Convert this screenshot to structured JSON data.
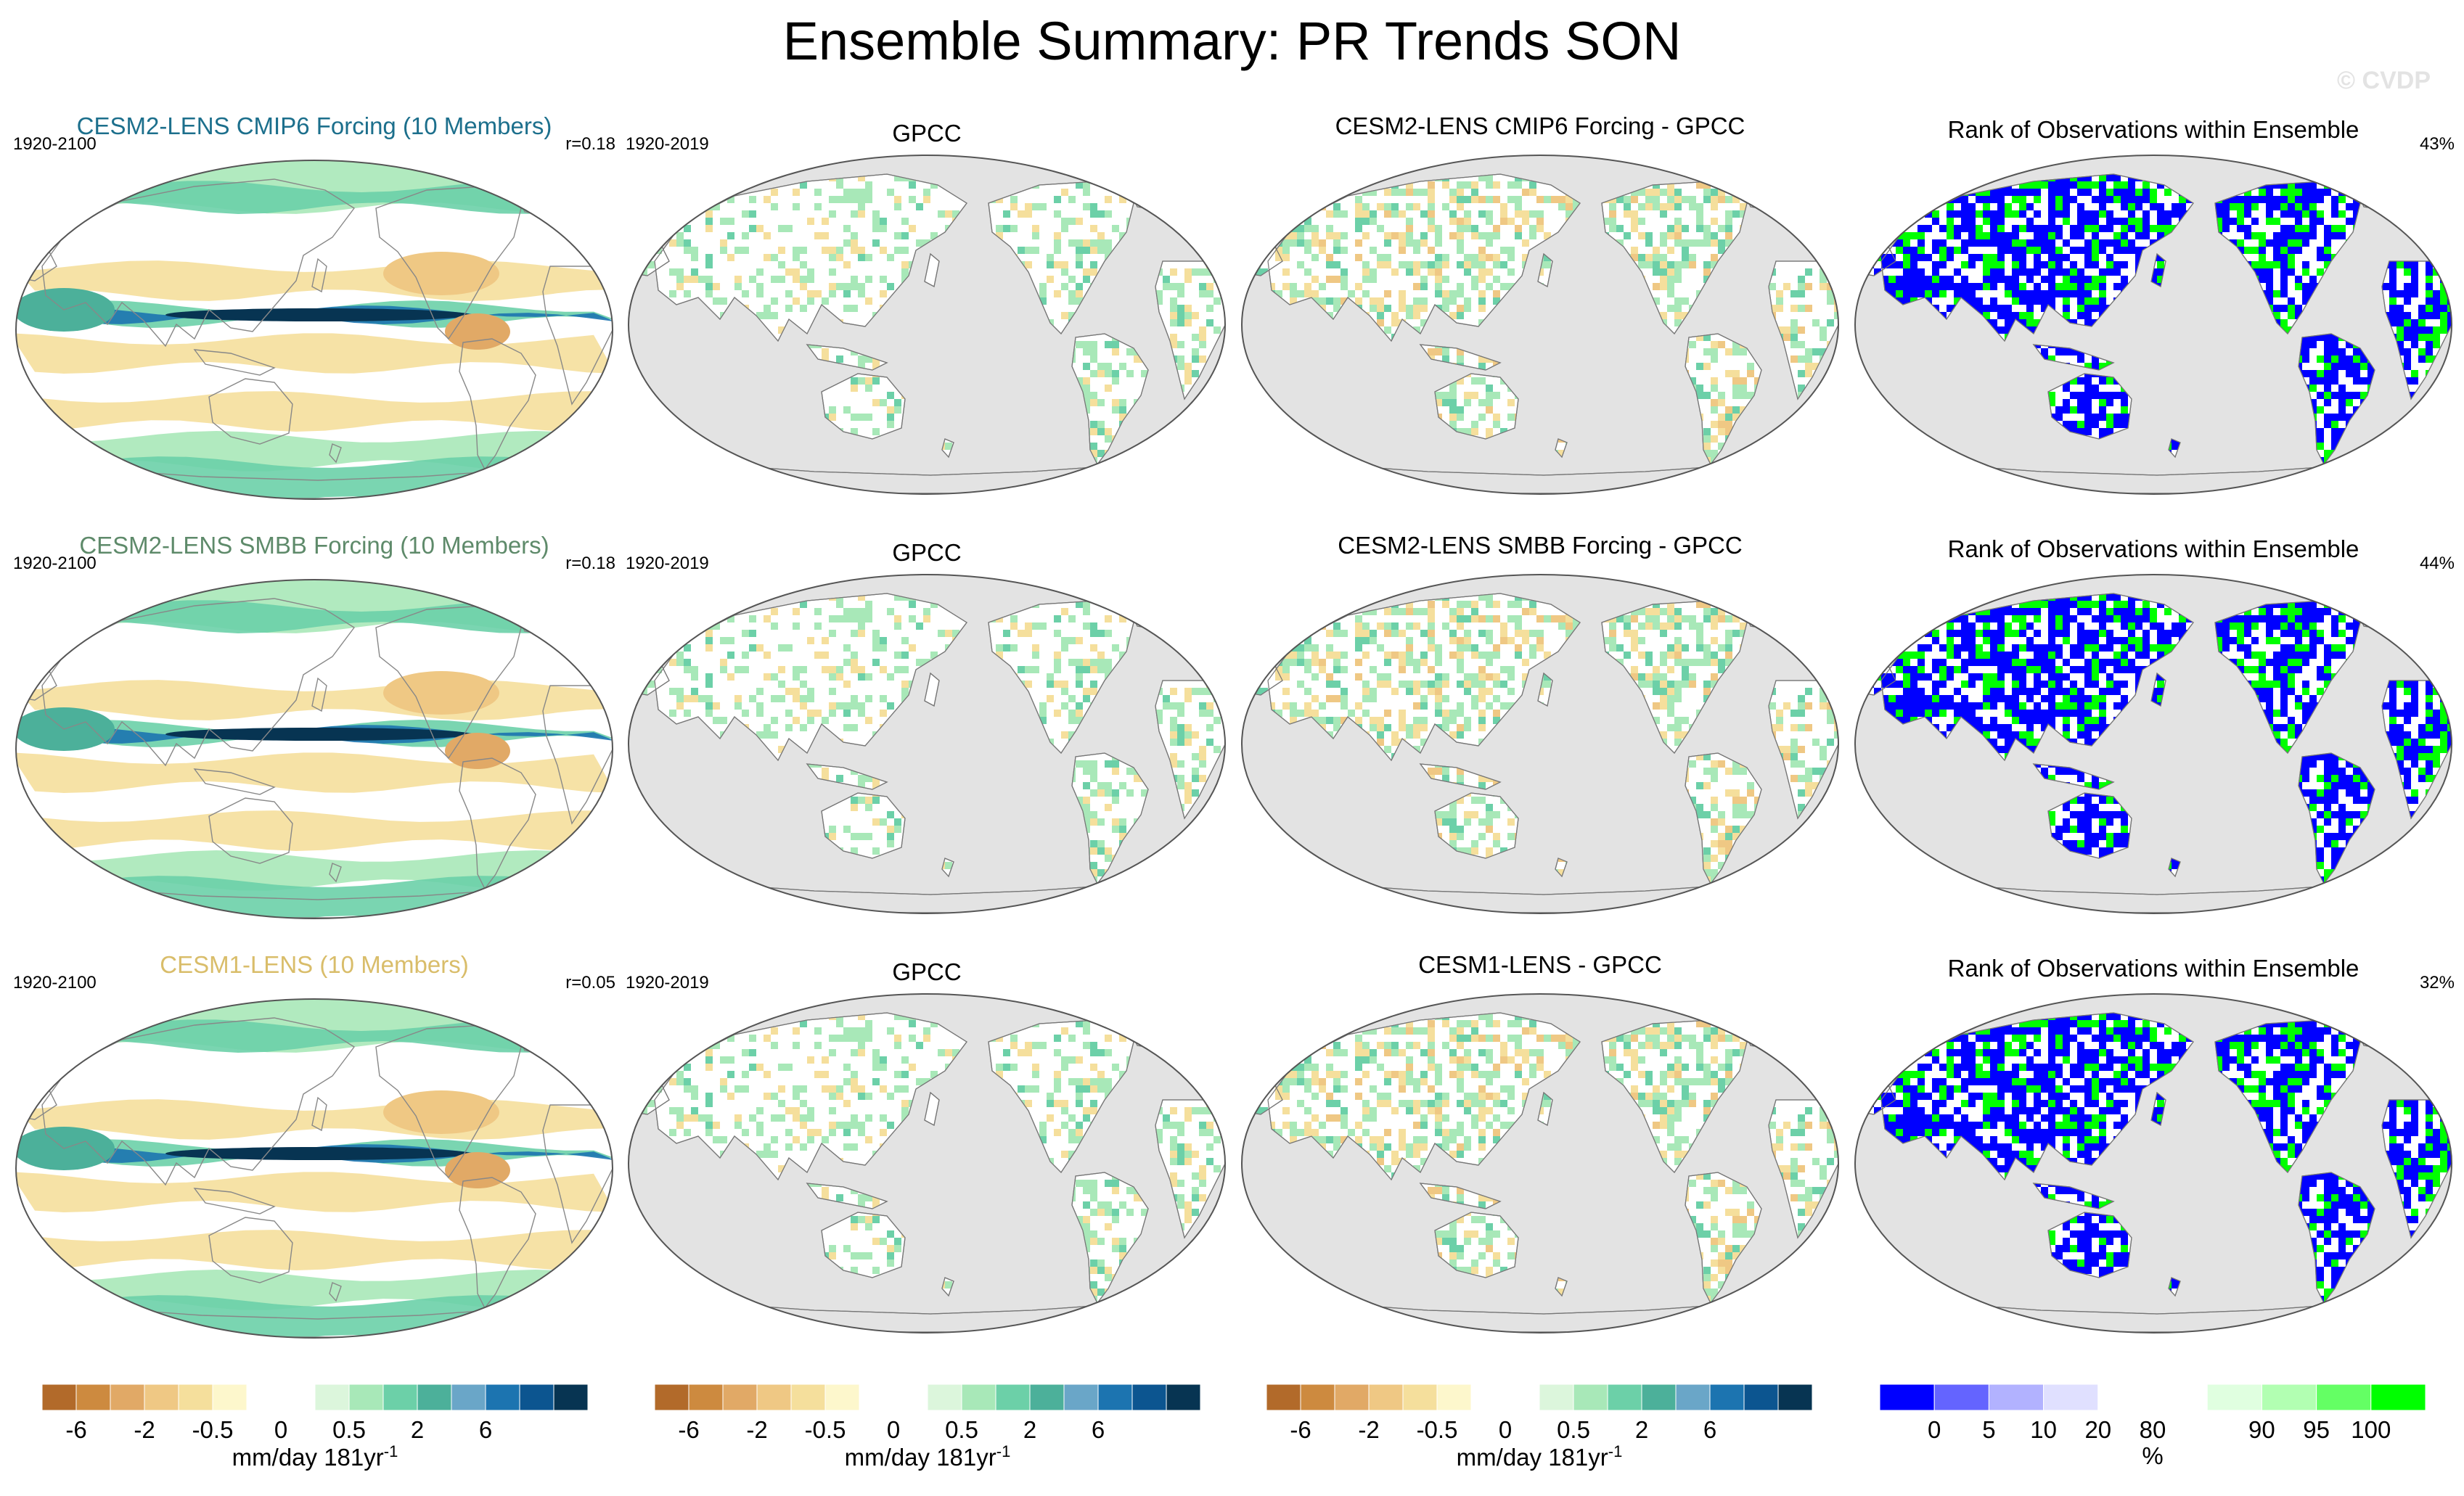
{
  "title": "Ensemble Summary: PR Trends SON",
  "credit": "© CVDP",
  "rows": [
    {
      "model_title": "CESM2-LENS CMIP6 Forcing (10 Members)",
      "model_title_color": "#1c6f8c",
      "model_period": "1920-2100",
      "model_corr": "r=0.18",
      "obs_title": "GPCC",
      "obs_period": "1920-2019",
      "diff_title": "CESM2-LENS CMIP6 Forcing - GPCC",
      "rank_title": "Rank of Observations within Ensemble",
      "rank_pct": "43%"
    },
    {
      "model_title": "CESM2-LENS SMBB Forcing (10 Members)",
      "model_title_color": "#5e8a6a",
      "model_period": "1920-2100",
      "model_corr": "r=0.18",
      "obs_title": "GPCC",
      "obs_period": "1920-2019",
      "diff_title": "CESM2-LENS SMBB Forcing - GPCC",
      "rank_title": "Rank of Observations within Ensemble",
      "rank_pct": "44%"
    },
    {
      "model_title": "CESM1-LENS (10 Members)",
      "model_title_color": "#d9bd6a",
      "model_period": "1920-2100",
      "model_corr": "r=0.05",
      "obs_title": "GPCC",
      "obs_period": "1920-2019",
      "diff_title": "CESM1-LENS - GPCC",
      "rank_title": "Rank of Observations within Ensemble",
      "rank_pct": "32%"
    }
  ],
  "colorbars": {
    "trend": {
      "colors": [
        "#b26a2a",
        "#cd8a3f",
        "#e1a966",
        "#efc884",
        "#f5df9c",
        "#fdf7cc",
        "#ffffff",
        "#ffffff",
        "#dcf6dc",
        "#a8e8b8",
        "#6cd0a8",
        "#4cb09a",
        "#6aa6c8",
        "#1c74b0",
        "#0c5590",
        "#073452"
      ],
      "ticks": [
        "-6",
        "-2",
        "-0.5",
        "0",
        "0.5",
        "2",
        "6"
      ],
      "label": "mm/day 181yr",
      "label_sup": "-1"
    },
    "rank": {
      "colors": [
        "#0000ff",
        "#6464ff",
        "#b2b2ff",
        "#e0e0ff",
        "#ffffff",
        "#ffffff",
        "#e0ffe0",
        "#b2ffb2",
        "#64ff64",
        "#00ff00"
      ],
      "ticks": [
        "0",
        "5",
        "10",
        "20",
        "80",
        "90",
        "95",
        "100"
      ],
      "label": "%"
    }
  },
  "map_colors": {
    "ocean": "#e3e3e3",
    "land": "#ffffff",
    "wet_light": "#a8e8b8",
    "wet_mid": "#6cd0a8",
    "wet_strong": "#4cb09a",
    "wet_deep": "#1c74b0",
    "wet_max": "#073452",
    "dry_light": "#f5df9c",
    "dry_mid": "#efc884",
    "dry_strong": "#e1a966",
    "rank_low": "#0000ff",
    "rank_high": "#00ff00"
  }
}
